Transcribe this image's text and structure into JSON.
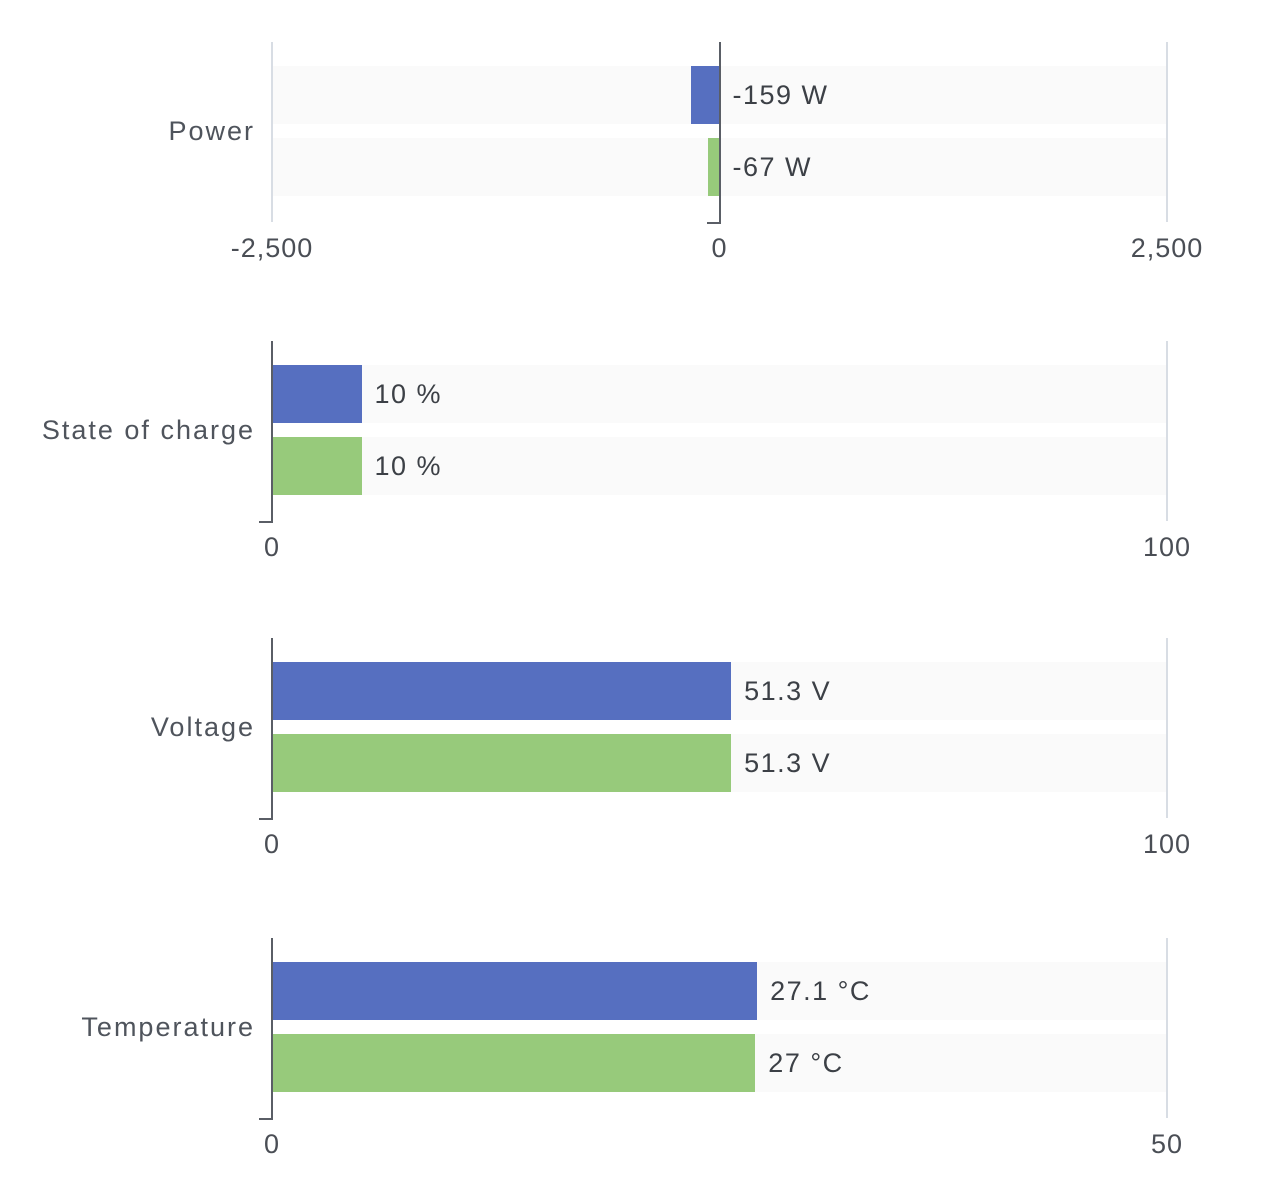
{
  "colors": {
    "series1": "#566fc0",
    "series2": "#97ca7b",
    "track": "#fafafa",
    "grid_light": "#d8dde4",
    "axis_dark": "#5a5e66",
    "category_label": "#4f545c",
    "value_label": "#3c4046",
    "tick_label": "#4a4e55",
    "background": "#ffffff"
  },
  "chart_data": [
    {
      "type": "bar",
      "orientation": "horizontal",
      "title": "Power",
      "unit": "W",
      "grid": "off",
      "legend": "none",
      "axis": {
        "min": -2500,
        "max": 2500,
        "ticks": [
          {
            "value": -2500,
            "label": "-2,500"
          },
          {
            "value": 0,
            "label": "0"
          },
          {
            "value": 2500,
            "label": "2,500"
          }
        ]
      },
      "series": [
        {
          "name": "series-1",
          "value": -159,
          "label": "-159 W"
        },
        {
          "name": "series-2",
          "value": -67,
          "label": "-67 W"
        }
      ]
    },
    {
      "type": "bar",
      "orientation": "horizontal",
      "title": "State of charge",
      "unit": "%",
      "grid": "off",
      "legend": "none",
      "axis": {
        "min": 0,
        "max": 100,
        "ticks": [
          {
            "value": 0,
            "label": "0"
          },
          {
            "value": 100,
            "label": "100"
          }
        ]
      },
      "series": [
        {
          "name": "series-1",
          "value": 10,
          "label": "10 %"
        },
        {
          "name": "series-2",
          "value": 10,
          "label": "10 %"
        }
      ]
    },
    {
      "type": "bar",
      "orientation": "horizontal",
      "title": "Voltage",
      "unit": "V",
      "grid": "off",
      "legend": "none",
      "axis": {
        "min": 0,
        "max": 100,
        "ticks": [
          {
            "value": 0,
            "label": "0"
          },
          {
            "value": 100,
            "label": "100"
          }
        ]
      },
      "series": [
        {
          "name": "series-1",
          "value": 51.3,
          "label": "51.3 V"
        },
        {
          "name": "series-2",
          "value": 51.3,
          "label": "51.3 V"
        }
      ]
    },
    {
      "type": "bar",
      "orientation": "horizontal",
      "title": "Temperature",
      "unit": "°C",
      "grid": "off",
      "legend": "none",
      "axis": {
        "min": 0,
        "max": 50,
        "ticks": [
          {
            "value": 0,
            "label": "0"
          },
          {
            "value": 50,
            "label": "50"
          }
        ]
      },
      "series": [
        {
          "name": "series-1",
          "value": 27.1,
          "label": "27.1 °C"
        },
        {
          "name": "series-2",
          "value": 27,
          "label": "27 °C"
        }
      ]
    }
  ]
}
